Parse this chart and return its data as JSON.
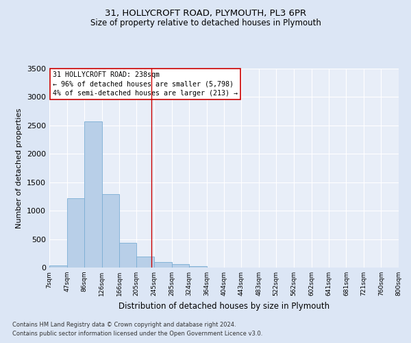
{
  "title1": "31, HOLLYCROFT ROAD, PLYMOUTH, PL3 6PR",
  "title2": "Size of property relative to detached houses in Plymouth",
  "xlabel": "Distribution of detached houses by size in Plymouth",
  "ylabel": "Number of detached properties",
  "bar_edges": [
    7,
    47,
    86,
    126,
    166,
    205,
    245,
    285,
    324,
    364,
    404,
    443,
    483,
    522,
    562,
    602,
    641,
    681,
    721,
    760,
    800
  ],
  "bar_heights": [
    35,
    1220,
    2570,
    1290,
    430,
    190,
    95,
    60,
    30,
    5,
    3,
    0,
    0,
    0,
    0,
    0,
    0,
    0,
    0,
    0
  ],
  "bar_color": "#b8cfe8",
  "bar_edge_color": "#7aadd4",
  "marker_value": 238,
  "marker_color": "#cc0000",
  "ylim": [
    0,
    3500
  ],
  "yticks": [
    0,
    500,
    1000,
    1500,
    2000,
    2500,
    3000,
    3500
  ],
  "annotation_text": "31 HOLLYCROFT ROAD: 238sqm\n← 96% of detached houses are smaller (5,798)\n4% of semi-detached houses are larger (213) →",
  "annotation_box_color": "#ffffff",
  "annotation_border_color": "#cc0000",
  "footnote1": "Contains HM Land Registry data © Crown copyright and database right 2024.",
  "footnote2": "Contains public sector information licensed under the Open Government Licence v3.0.",
  "bg_color": "#dce6f5",
  "plot_bg_color": "#e8eef8"
}
